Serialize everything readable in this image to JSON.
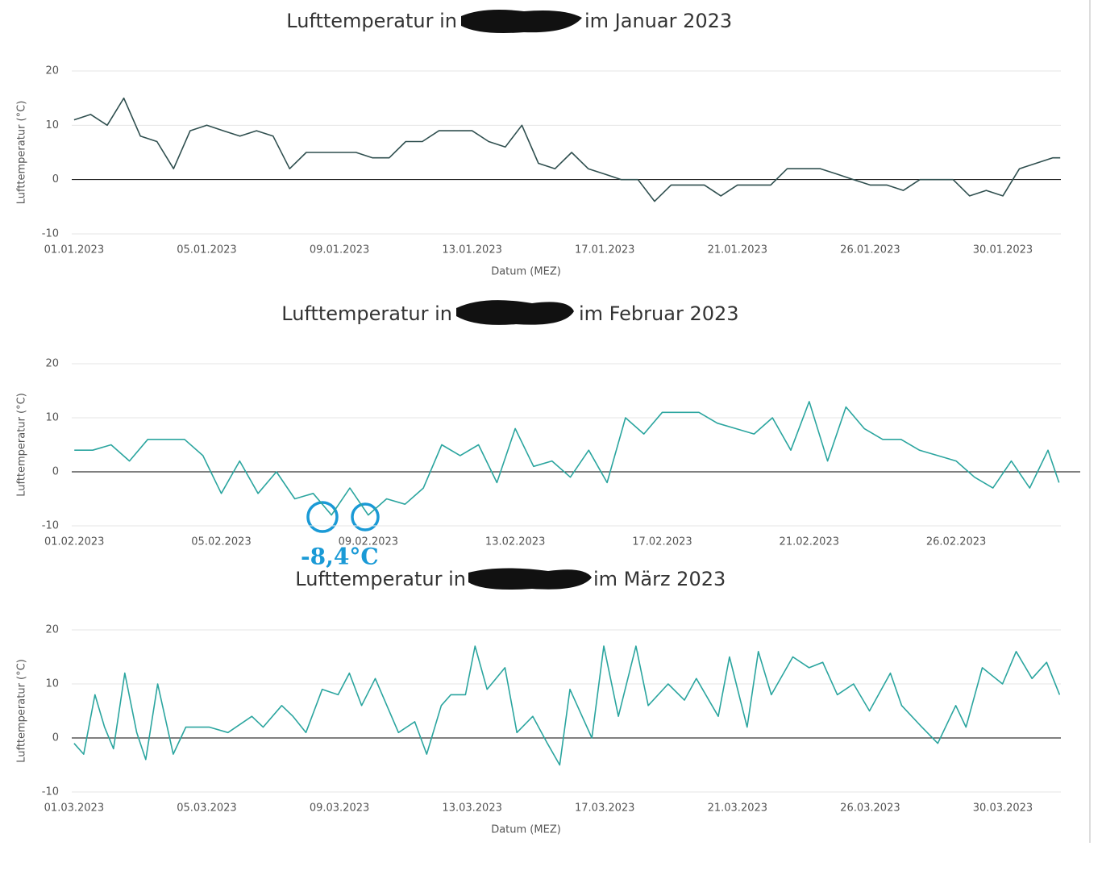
{
  "chart_data": [
    {
      "type": "line",
      "title_start": "Lufttemperatur in",
      "title_end": "im Januar 2023",
      "y_label": "Lufttemperatur (°C)",
      "x_label": "Datum (MEZ)",
      "color": "#2f4f4f",
      "x": [
        0,
        0.5,
        1,
        1.5,
        2,
        2.5,
        3,
        3.5,
        4,
        4.5,
        5,
        5.5,
        6,
        6.5,
        7,
        7.5,
        8,
        8.5,
        9,
        9.5,
        10,
        10.5,
        11,
        11.5,
        12,
        12.5,
        13,
        13.5,
        14,
        14.5,
        15,
        15.5,
        16,
        16.5,
        17,
        17.5,
        18,
        18.5,
        19,
        19.5,
        20,
        20.5,
        21,
        21.5,
        22,
        22.5,
        23,
        23.5,
        24,
        24.5,
        25,
        25.5,
        26,
        26.5,
        27,
        27.5,
        28,
        28.5,
        29,
        29.5,
        29.73
      ],
      "values": [
        11,
        12,
        10,
        15,
        8,
        7,
        2,
        9,
        10,
        9,
        8,
        9,
        8,
        2,
        5,
        5,
        5,
        5,
        4,
        4,
        7,
        7,
        9,
        9,
        9,
        7,
        6,
        10,
        3,
        2,
        5,
        2,
        1,
        0,
        0,
        -4,
        -1,
        -1,
        -1,
        -3,
        -1,
        -1,
        -1,
        2,
        2,
        2,
        1,
        0,
        -1,
        -1,
        -2,
        0,
        0,
        0,
        -3,
        -2,
        -3,
        2,
        3,
        4,
        4
      ],
      "xlim": [
        -0.07,
        29.75
      ],
      "xticks": [
        {
          "value": 0,
          "label": "01.01.2023"
        },
        {
          "value": 4,
          "label": "05.01.2023"
        },
        {
          "value": 8,
          "label": "09.01.2023"
        },
        {
          "value": 12,
          "label": "13.01.2023"
        },
        {
          "value": 16,
          "label": "17.01.2023"
        },
        {
          "value": 20,
          "label": "21.01.2023"
        },
        {
          "value": 24,
          "label": "26.01.2023"
        },
        {
          "value": 28,
          "label": "30.01.2023"
        }
      ],
      "ylim": [
        -10,
        20
      ],
      "yticks": [
        -10,
        0,
        10,
        20
      ],
      "grid": true
    },
    {
      "type": "line",
      "title_start": "Lufttemperatur in",
      "title_end": "im Februar 2023",
      "y_label": "Lufttemperatur (°C)",
      "color": "#2ba59f",
      "annotation": "-8,4°C",
      "x": [
        0,
        0.5,
        1,
        1.5,
        2,
        2.5,
        3,
        3.5,
        4,
        4.5,
        5,
        5.5,
        6,
        6.5,
        7,
        7.5,
        8,
        8.5,
        9,
        9.5,
        10,
        10.5,
        11,
        11.5,
        12,
        12.5,
        13,
        13.5,
        14,
        14.5,
        15,
        15.5,
        16,
        16.5,
        17,
        17.5,
        18,
        18.5,
        19,
        19.5,
        20,
        20.5,
        21,
        21.5,
        22,
        22.5,
        23,
        23.5,
        24,
        24.5,
        25,
        25.5,
        26,
        26.5,
        26.8
      ],
      "values": [
        4,
        4,
        5,
        2,
        6,
        6,
        6,
        3,
        -4,
        2,
        -4,
        0,
        -5,
        -4,
        -8,
        -3,
        -8,
        -5,
        -6,
        -3,
        5,
        3,
        5,
        -2,
        8,
        1,
        2,
        -1,
        4,
        -2,
        10,
        7,
        11,
        11,
        11,
        9,
        8,
        7,
        10,
        4,
        13,
        2,
        12,
        8,
        6,
        6,
        4,
        3,
        2,
        -1,
        -3,
        2,
        -3,
        4,
        -2
      ],
      "xlim": [
        -0.07,
        26.85
      ],
      "xticks": [
        {
          "value": 0,
          "label": "01.02.2023"
        },
        {
          "value": 4,
          "label": "05.02.2023"
        },
        {
          "value": 8,
          "label": "09.02.2023"
        },
        {
          "value": 12,
          "label": "13.02.2023"
        },
        {
          "value": 16,
          "label": "17.02.2023"
        },
        {
          "value": 20,
          "label": "21.02.2023"
        },
        {
          "value": 24,
          "label": "26.02.2023"
        }
      ],
      "ylim": [
        -10,
        20
      ],
      "yticks": [
        -10,
        0,
        10,
        20
      ],
      "grid": true
    },
    {
      "type": "line",
      "title_start": "Lufttemperatur in",
      "title_end": "im März 2023",
      "y_label": "Lufttemperatur (°C)",
      "x_label": "Datum (MEZ)",
      "color": "#2ba59f",
      "x": [
        0,
        0.29,
        0.63,
        0.92,
        1.19,
        1.53,
        1.89,
        2.16,
        2.52,
        2.99,
        3.37,
        4.08,
        4.64,
        5.36,
        5.7,
        6.26,
        6.6,
        6.99,
        7.48,
        7.96,
        8.3,
        8.67,
        9.08,
        9.78,
        10.27,
        10.63,
        11.07,
        11.36,
        11.8,
        12.09,
        12.45,
        12.99,
        13.35,
        13.83,
        14.27,
        14.64,
        14.95,
        15.61,
        15.97,
        16.41,
        16.94,
        17.31,
        17.91,
        18.4,
        18.76,
        19.42,
        19.76,
        20.29,
        20.63,
        21.02,
        21.67,
        22.16,
        22.57,
        23.01,
        23.5,
        23.98,
        24.61,
        24.95,
        25.56,
        26.04,
        26.58,
        26.89,
        27.38,
        27.99,
        28.4,
        28.88,
        29.32,
        29.71
      ],
      "values": [
        -1,
        -3,
        8,
        2,
        -2,
        12,
        1,
        -4,
        10,
        -3,
        2,
        2,
        1,
        4,
        2,
        6,
        4,
        1,
        9,
        8,
        12,
        6,
        11,
        1,
        3,
        -3,
        6,
        8,
        8,
        17,
        9,
        13,
        1,
        4,
        -1,
        -5,
        9,
        0,
        17,
        4,
        17,
        6,
        10,
        7,
        11,
        4,
        15,
        2,
        16,
        8,
        15,
        13,
        14,
        8,
        10,
        5,
        12,
        6,
        2,
        -1,
        6,
        2,
        13,
        10,
        16,
        11,
        14,
        8
      ],
      "xlim": [
        -0.07,
        29.75
      ],
      "xticks": [
        {
          "value": 0,
          "label": "01.03.2023"
        },
        {
          "value": 4,
          "label": "05.03.2023"
        },
        {
          "value": 8,
          "label": "09.03.2023"
        },
        {
          "value": 12,
          "label": "13.03.2023"
        },
        {
          "value": 16,
          "label": "17.03.2023"
        },
        {
          "value": 20,
          "label": "21.03.2023"
        },
        {
          "value": 24,
          "label": "26.03.2023"
        },
        {
          "value": 28,
          "label": "30.03.2023"
        }
      ],
      "ylim": [
        -10,
        20
      ],
      "yticks": [
        -10,
        0,
        10,
        20
      ],
      "grid": true
    }
  ]
}
